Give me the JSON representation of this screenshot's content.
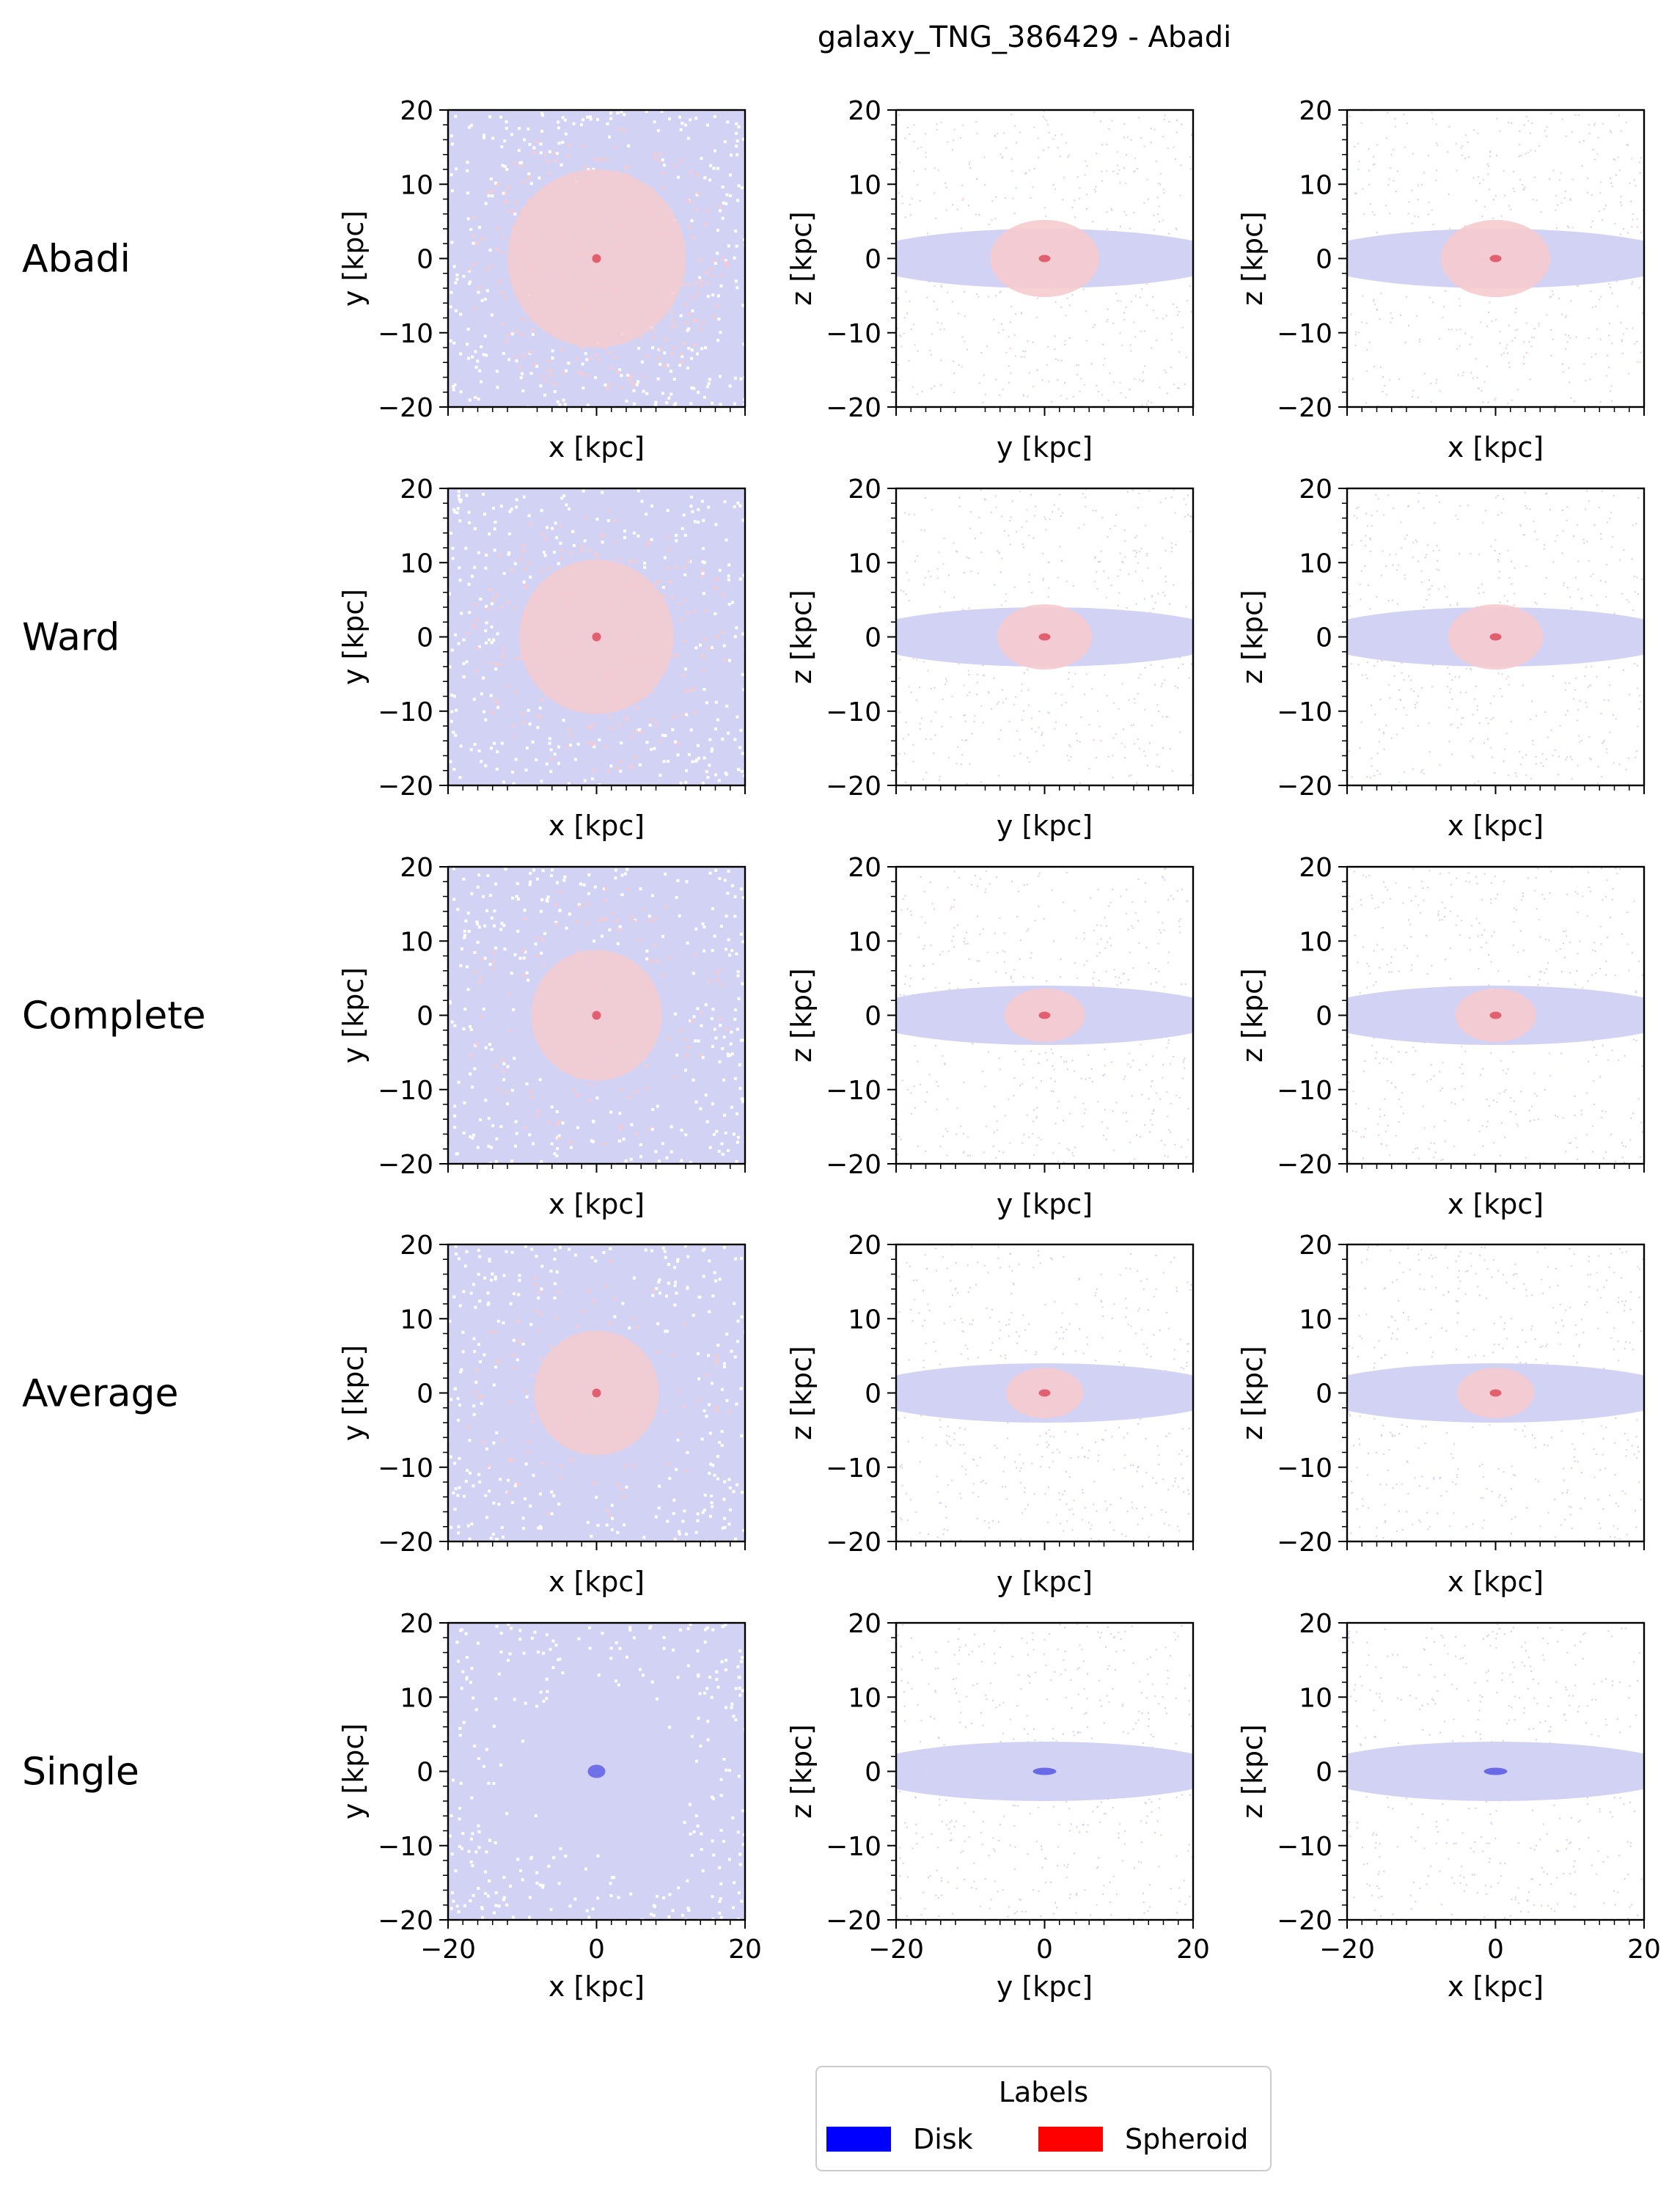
{
  "figure": {
    "title": "galaxy_TNG_386429 - Abadi"
  },
  "legend": {
    "title": "Labels",
    "placement": "bottom-center",
    "entries": [
      {
        "label": "Disk",
        "color": "#0000ff"
      },
      {
        "label": "Spheroid",
        "color": "#ff0000"
      }
    ]
  },
  "colors": {
    "disk": "#0000ff",
    "spheroid": "#ff0000",
    "disk_faint": "#d0d0f4",
    "spheroid_faint": "#f6cbcf"
  },
  "chart_data": {
    "type": "heatmap",
    "rows": [
      {
        "label": "Abadi",
        "spheroid_fraction": 0.7
      },
      {
        "label": "Ward",
        "spheroid_fraction": 0.5
      },
      {
        "label": "Complete",
        "spheroid_fraction": 0.3
      },
      {
        "label": "Average",
        "spheroid_fraction": 0.25
      },
      {
        "label": "Single",
        "spheroid_fraction": 0.0
      }
    ],
    "projections": [
      {
        "xlabel": "x [kpc]",
        "ylabel": "y [kpc]"
      },
      {
        "xlabel": "y [kpc]",
        "ylabel": "z [kpc]"
      },
      {
        "xlabel": "x [kpc]",
        "ylabel": "z [kpc]"
      }
    ],
    "xlim": [
      -20,
      20
    ],
    "ylim": [
      -20,
      20
    ],
    "xticks": [
      -20,
      0,
      20
    ],
    "yticks": [
      -20,
      -10,
      0,
      10,
      20
    ],
    "xtick_labels": [
      "−20",
      "0",
      "20"
    ],
    "ytick_labels": [
      "−20",
      "−10",
      "0",
      "10",
      "20"
    ],
    "grid": false
  }
}
